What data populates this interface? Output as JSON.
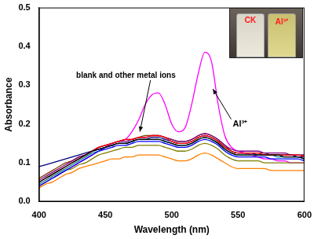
{
  "chart_data": {
    "type": "line",
    "x_label": "Wavelength (nm)",
    "y_label": "Absorbance",
    "x": [
      400,
      405,
      410,
      415,
      420,
      425,
      430,
      435,
      440,
      445,
      450,
      455,
      460,
      465,
      470,
      475,
      480,
      485,
      490,
      495,
      500,
      505,
      510,
      515,
      520,
      525,
      530,
      535,
      540,
      545,
      550,
      555,
      560,
      565,
      570,
      575,
      580,
      585,
      590,
      595,
      600
    ],
    "xlim": [
      400,
      600
    ],
    "xticks": [
      400,
      450,
      500,
      550,
      600
    ],
    "ylim": [
      0,
      0.5
    ],
    "yticks": [
      {
        "value": 0,
        "label": "0.0"
      },
      {
        "value": 0.1,
        "label": "0.1"
      },
      {
        "value": 0.2,
        "label": "0.2"
      },
      {
        "value": 0.3,
        "label": "0.3"
      },
      {
        "value": 0.4,
        "label": "0.4"
      },
      {
        "value": 0.5,
        "label": "0.5"
      }
    ],
    "grid": false,
    "annotations": [
      {
        "text": "blank and other metal ions"
      },
      {
        "text": "Al³⁺"
      }
    ],
    "inset_labels": [
      "CK",
      "Al³⁺"
    ],
    "series": [
      {
        "color": "#000000",
        "values": [
          0.05,
          0.06,
          0.07,
          0.08,
          0.09,
          0.1,
          0.11,
          0.12,
          0.13,
          0.135,
          0.14,
          0.145,
          0.15,
          0.15,
          0.155,
          0.16,
          0.16,
          0.16,
          0.16,
          0.155,
          0.15,
          0.145,
          0.145,
          0.15,
          0.16,
          0.165,
          0.16,
          0.15,
          0.135,
          0.125,
          0.12,
          0.12,
          0.12,
          0.12,
          0.12,
          0.12,
          0.12,
          0.115,
          0.115,
          0.115,
          0.11
        ]
      },
      {
        "color": "#ff0000",
        "values": [
          0.05,
          0.06,
          0.07,
          0.08,
          0.09,
          0.1,
          0.11,
          0.12,
          0.13,
          0.14,
          0.145,
          0.15,
          0.155,
          0.16,
          0.16,
          0.165,
          0.165,
          0.17,
          0.17,
          0.165,
          0.155,
          0.15,
          0.15,
          0.155,
          0.165,
          0.17,
          0.165,
          0.155,
          0.14,
          0.13,
          0.125,
          0.125,
          0.125,
          0.125,
          0.12,
          0.12,
          0.12,
          0.12,
          0.12,
          0.12,
          0.115
        ]
      },
      {
        "color": "#0000ff",
        "values": [
          0.04,
          0.05,
          0.06,
          0.07,
          0.08,
          0.09,
          0.1,
          0.11,
          0.12,
          0.13,
          0.135,
          0.14,
          0.145,
          0.145,
          0.15,
          0.155,
          0.155,
          0.155,
          0.155,
          0.15,
          0.145,
          0.14,
          0.14,
          0.145,
          0.155,
          0.16,
          0.155,
          0.145,
          0.13,
          0.12,
          0.115,
          0.115,
          0.115,
          0.115,
          0.115,
          0.11,
          0.11,
          0.11,
          0.11,
          0.11,
          0.105
        ]
      },
      {
        "color": "#000080",
        "values": [
          0.09,
          0.095,
          0.1,
          0.105,
          0.11,
          0.115,
          0.12,
          0.125,
          0.13,
          0.135,
          0.14,
          0.145,
          0.15,
          0.15,
          0.155,
          0.16,
          0.16,
          0.165,
          0.165,
          0.16,
          0.155,
          0.15,
          0.15,
          0.155,
          0.165,
          0.17,
          0.165,
          0.155,
          0.14,
          0.13,
          0.125,
          0.125,
          0.125,
          0.12,
          0.12,
          0.12,
          0.12,
          0.12,
          0.12,
          0.115,
          0.115
        ]
      },
      {
        "color": "#008080",
        "values": [
          0.045,
          0.055,
          0.065,
          0.075,
          0.085,
          0.095,
          0.105,
          0.115,
          0.125,
          0.13,
          0.14,
          0.145,
          0.15,
          0.15,
          0.155,
          0.16,
          0.16,
          0.16,
          0.16,
          0.155,
          0.15,
          0.145,
          0.145,
          0.15,
          0.16,
          0.165,
          0.16,
          0.15,
          0.135,
          0.125,
          0.12,
          0.12,
          0.12,
          0.12,
          0.12,
          0.12,
          0.115,
          0.115,
          0.115,
          0.115,
          0.11
        ]
      },
      {
        "color": "#800080",
        "values": [
          0.055,
          0.065,
          0.075,
          0.085,
          0.095,
          0.105,
          0.115,
          0.12,
          0.13,
          0.14,
          0.145,
          0.15,
          0.155,
          0.155,
          0.16,
          0.165,
          0.165,
          0.17,
          0.17,
          0.165,
          0.16,
          0.155,
          0.155,
          0.16,
          0.17,
          0.175,
          0.17,
          0.16,
          0.145,
          0.135,
          0.13,
          0.13,
          0.13,
          0.13,
          0.125,
          0.125,
          0.125,
          0.125,
          0.12,
          0.12,
          0.12
        ]
      },
      {
        "color": "#ff8000",
        "values": [
          0.035,
          0.045,
          0.05,
          0.06,
          0.07,
          0.075,
          0.085,
          0.09,
          0.095,
          0.1,
          0.105,
          0.11,
          0.11,
          0.115,
          0.115,
          0.12,
          0.12,
          0.12,
          0.12,
          0.115,
          0.11,
          0.105,
          0.105,
          0.11,
          0.12,
          0.125,
          0.12,
          0.11,
          0.1,
          0.09,
          0.085,
          0.085,
          0.085,
          0.085,
          0.085,
          0.08,
          0.08,
          0.08,
          0.08,
          0.08,
          0.08
        ]
      },
      {
        "color": "#808000",
        "values": [
          0.04,
          0.05,
          0.06,
          0.07,
          0.08,
          0.085,
          0.095,
          0.1,
          0.11,
          0.12,
          0.125,
          0.13,
          0.135,
          0.14,
          0.14,
          0.145,
          0.145,
          0.145,
          0.145,
          0.14,
          0.135,
          0.13,
          0.13,
          0.135,
          0.145,
          0.15,
          0.145,
          0.135,
          0.12,
          0.11,
          0.105,
          0.105,
          0.105,
          0.105,
          0.1,
          0.1,
          0.1,
          0.1,
          0.1,
          0.1,
          0.1
        ]
      },
      {
        "color": "#804000",
        "values": [
          0.06,
          0.07,
          0.08,
          0.09,
          0.1,
          0.105,
          0.115,
          0.12,
          0.13,
          0.14,
          0.145,
          0.15,
          0.155,
          0.16,
          0.16,
          0.165,
          0.17,
          0.17,
          0.17,
          0.165,
          0.16,
          0.155,
          0.155,
          0.16,
          0.17,
          0.175,
          0.17,
          0.16,
          0.145,
          0.13,
          0.125,
          0.125,
          0.125,
          0.125,
          0.125,
          0.12,
          0.12,
          0.12,
          0.12,
          0.12,
          0.12
        ]
      },
      {
        "color": "#ff00ff",
        "values": [
          0.04,
          0.05,
          0.06,
          0.07,
          0.08,
          0.09,
          0.1,
          0.11,
          0.12,
          0.13,
          0.14,
          0.15,
          0.155,
          0.16,
          0.18,
          0.21,
          0.25,
          0.275,
          0.28,
          0.25,
          0.2,
          0.18,
          0.19,
          0.25,
          0.33,
          0.385,
          0.36,
          0.25,
          0.17,
          0.14,
          0.13,
          0.125,
          0.12,
          0.115,
          0.11,
          0.11,
          0.105,
          0.105,
          0.1,
          0.1,
          0.1
        ]
      }
    ]
  }
}
